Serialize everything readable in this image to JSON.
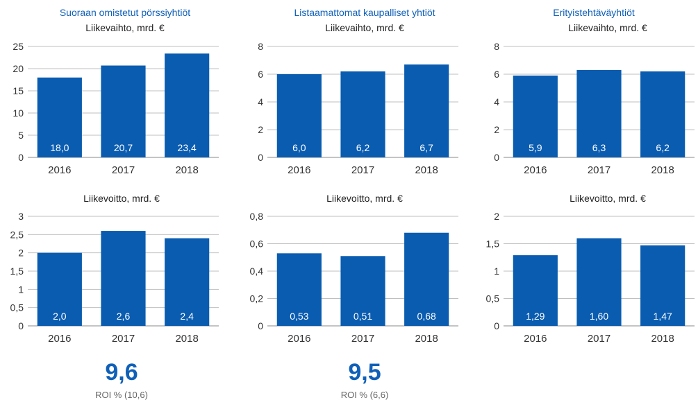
{
  "groups": [
    {
      "title": "Suoraan omistetut pörssiyhtiöt"
    },
    {
      "title": "Listaamattomat kaupalliset yhtiöt"
    },
    {
      "title": "Erityistehtäväyhtiöt"
    }
  ],
  "roi": [
    {
      "value": "9,6",
      "label": "ROI % (10,6)"
    },
    {
      "value": "9,5",
      "label": "ROI % (6,6)"
    }
  ],
  "colors": {
    "bar": "#0a5cb0",
    "accent": "#1060b8",
    "grid": "#bfbfbf"
  },
  "chart_data": [
    {
      "type": "bar",
      "title": "Liikevaihto, mrd. €",
      "categories": [
        "2016",
        "2017",
        "2018"
      ],
      "values": [
        18.0,
        20.7,
        23.4
      ],
      "labels": [
        "18,0",
        "20,7",
        "23,4"
      ],
      "ylim": [
        0,
        25
      ],
      "yticks": [
        "0",
        "5",
        "10",
        "15",
        "20",
        "25"
      ],
      "grid": true
    },
    {
      "type": "bar",
      "title": "Liikevaihto, mrd. €",
      "categories": [
        "2016",
        "2017",
        "2018"
      ],
      "values": [
        6.0,
        6.2,
        6.7
      ],
      "labels": [
        "6,0",
        "6,2",
        "6,7"
      ],
      "ylim": [
        0,
        8
      ],
      "yticks": [
        "0",
        "2",
        "4",
        "6",
        "8"
      ],
      "grid": true
    },
    {
      "type": "bar",
      "title": "Liikevaihto, mrd. €",
      "categories": [
        "2016",
        "2017",
        "2018"
      ],
      "values": [
        5.9,
        6.3,
        6.2
      ],
      "labels": [
        "5,9",
        "6,3",
        "6,2"
      ],
      "ylim": [
        0,
        8
      ],
      "yticks": [
        "0",
        "2",
        "4",
        "6",
        "8"
      ],
      "grid": true
    },
    {
      "type": "bar",
      "title": "Liikevoitto, mrd. €",
      "categories": [
        "2016",
        "2017",
        "2018"
      ],
      "values": [
        2.0,
        2.6,
        2.4
      ],
      "labels": [
        "2,0",
        "2,6",
        "2,4"
      ],
      "ylim": [
        0,
        3
      ],
      "yticks": [
        "0",
        "0,5",
        "1",
        "1,5",
        "2",
        "2,5",
        "3"
      ],
      "grid": true
    },
    {
      "type": "bar",
      "title": "Liikevoitto, mrd. €",
      "categories": [
        "2016",
        "2017",
        "2018"
      ],
      "values": [
        0.53,
        0.51,
        0.68
      ],
      "labels": [
        "0,53",
        "0,51",
        "0,68"
      ],
      "ylim": [
        0,
        0.8
      ],
      "yticks": [
        "0",
        "0,2",
        "0,4",
        "0,6",
        "0,8"
      ],
      "grid": true
    },
    {
      "type": "bar",
      "title": "Liikevoitto, mrd. €",
      "categories": [
        "2016",
        "2017",
        "2018"
      ],
      "values": [
        1.29,
        1.6,
        1.47
      ],
      "labels": [
        "1,29",
        "1,60",
        "1,47"
      ],
      "ylim": [
        0,
        2
      ],
      "yticks": [
        "0",
        "0,5",
        "1",
        "1,5",
        "2"
      ],
      "grid": true
    }
  ]
}
